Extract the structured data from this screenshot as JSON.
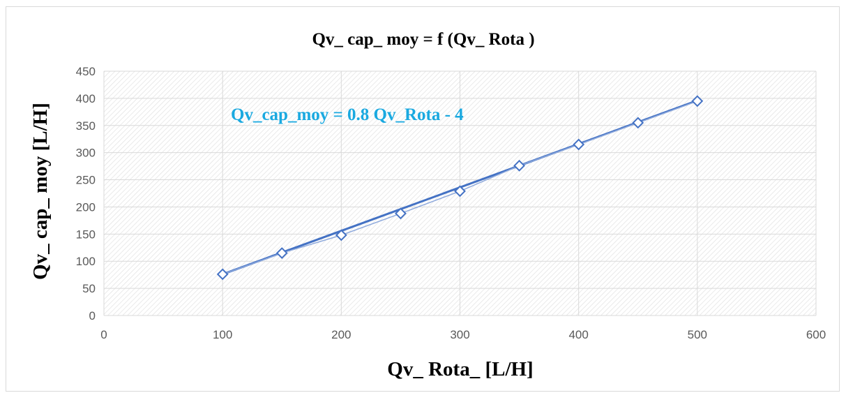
{
  "chart_data": {
    "type": "scatter",
    "title": "Qv_ cap_ moy = f (Qv_ Rota )",
    "xlabel": "Qv_ Rota_ [L/H]",
    "ylabel": "Qv_ cap_ moy [L/H]",
    "xlim": [
      0,
      600
    ],
    "ylim": [
      0,
      450
    ],
    "xticks": [
      0,
      100,
      200,
      300,
      400,
      500,
      600
    ],
    "yticks": [
      0,
      50,
      100,
      150,
      200,
      250,
      300,
      350,
      400,
      450
    ],
    "grid": true,
    "legend": "none",
    "series": [
      {
        "marker": "diamond",
        "x": [
          100,
          150,
          200,
          250,
          300,
          350,
          400,
          450,
          500
        ],
        "y": [
          76,
          115,
          148,
          188,
          229,
          276,
          315,
          355,
          395
        ]
      }
    ],
    "trendline": {
      "kind": "linear",
      "slope": 0.8,
      "intercept": -4,
      "x_range": [
        100,
        500
      ],
      "equation_label": "Qv_cap_moy = 0.8 Qv_Rota - 4"
    }
  },
  "colors": {
    "series": "#4472c4",
    "trendline": "#4472c4",
    "equation": "#1aa9e0",
    "grid": "#d9d9d9",
    "axis_text": "#595959",
    "title_text": "#000000"
  }
}
